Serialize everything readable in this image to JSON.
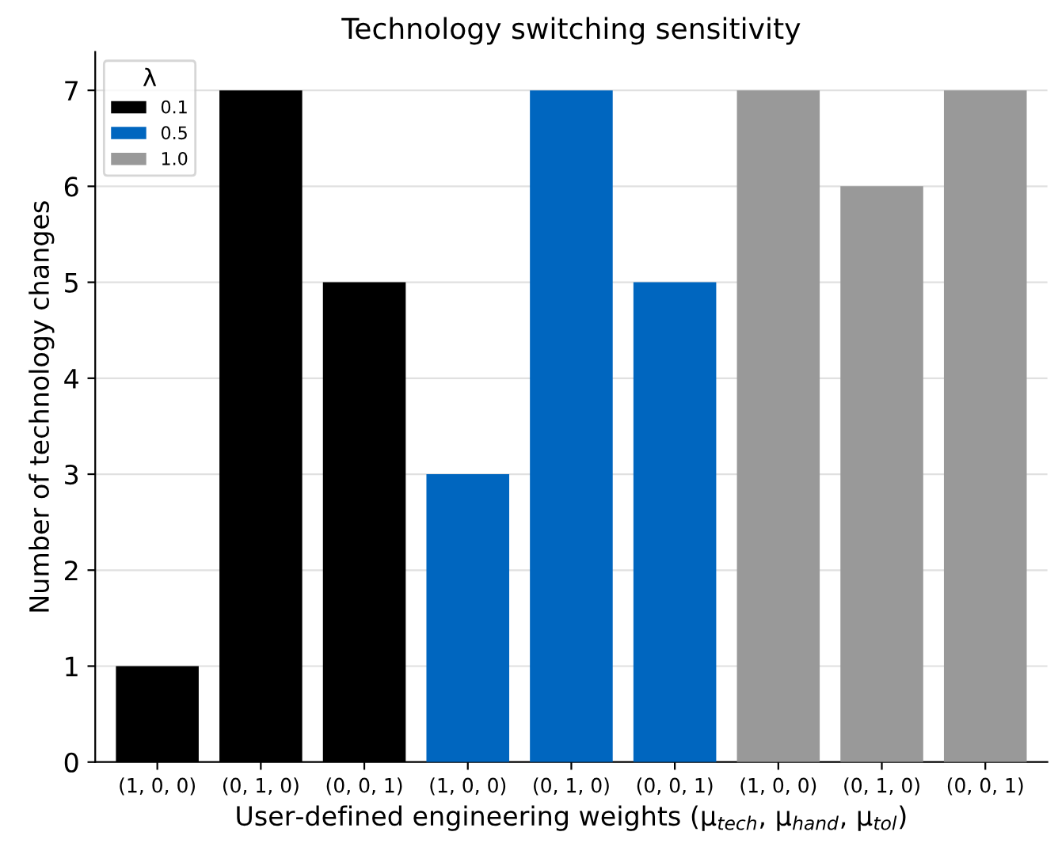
{
  "chart_data": {
    "type": "bar",
    "title": "Technology switching sensitivity",
    "xlabel": "User-defined engineering weights (μ$_{tech}$, μ$_{hand}$, μ$_{tol}$)",
    "ylabel": "Number of technology changes",
    "categories": [
      "(1, 0, 0)",
      "(0, 1, 0)",
      "(0, 0, 1)",
      "(1, 0, 0)",
      "(0, 1, 0)",
      "(0, 0, 1)",
      "(1, 0, 0)",
      "(0, 1, 0)",
      "(0, 0, 1)"
    ],
    "series": [
      {
        "name": "0.1",
        "color": "#000000",
        "values": [
          1,
          7,
          5,
          null,
          null,
          null,
          null,
          null,
          null
        ]
      },
      {
        "name": "0.5",
        "color": "#0066bf",
        "values": [
          null,
          null,
          null,
          3,
          7,
          5,
          null,
          null,
          null
        ]
      },
      {
        "name": "1.0",
        "color": "#999999",
        "values": [
          null,
          null,
          null,
          null,
          null,
          null,
          7,
          6,
          7
        ]
      }
    ],
    "legend_title": "λ",
    "legend": "top left",
    "ylim": [
      0,
      7.4
    ],
    "yticks": [
      0,
      1,
      2,
      3,
      4,
      5,
      6,
      7
    ],
    "grid": "y"
  }
}
